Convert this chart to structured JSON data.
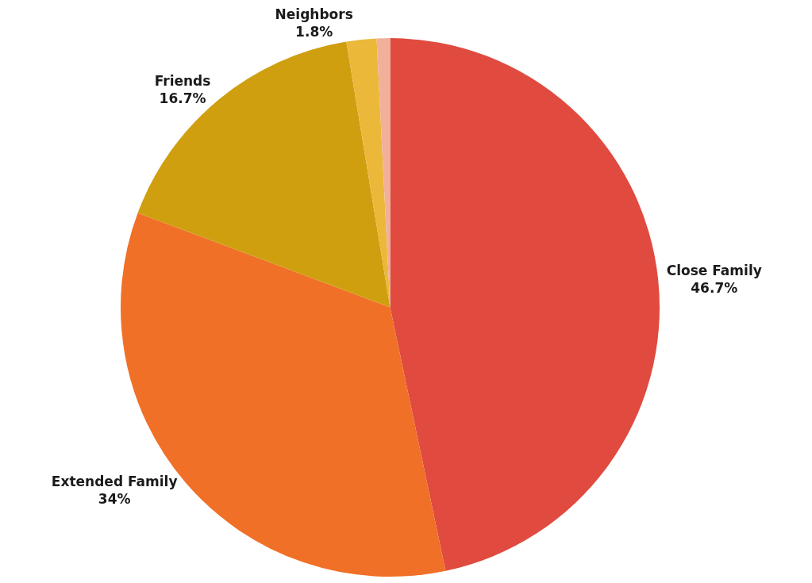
{
  "chart_data": {
    "type": "pie",
    "categories": [
      "Close Family",
      "Extended Family",
      "Friends",
      "Neighbors",
      null
    ],
    "values": [
      46.7,
      34,
      16.7,
      1.8,
      0.8
    ],
    "value_labels": [
      "46.7%",
      "34%",
      "16.7%",
      "1.8%",
      null
    ],
    "colors": [
      "#e04a3f",
      "#f07028",
      "#cf9f10",
      "#ecb83a",
      "#f0b09a"
    ],
    "legend": false
  }
}
